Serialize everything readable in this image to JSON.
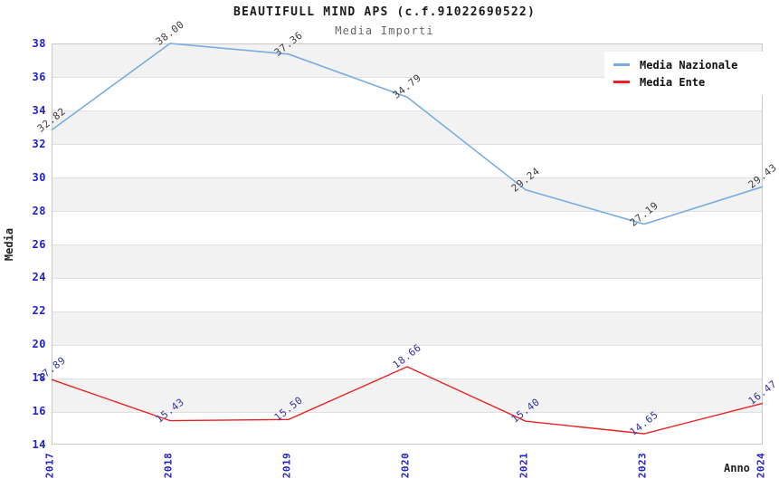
{
  "header": {
    "title": "BEAUTIFULL MIND APS (c.f.91022690522)",
    "subtitle": "Media Importi"
  },
  "chart_data": {
    "type": "line",
    "title": "BEAUTIFULL MIND APS (c.f.91022690522)",
    "subtitle": "Media Importi",
    "xlabel": "Anno",
    "ylabel": "Media",
    "x": [
      "2017",
      "2018",
      "2019",
      "2020",
      "2021",
      "2023",
      "2024"
    ],
    "series": [
      {
        "name": "Media Nazionale",
        "color": "#79ade2",
        "label_color": "#3d3d3d",
        "stroke_width": 1.6,
        "values": [
          32.82,
          38.0,
          37.36,
          34.79,
          29.24,
          27.19,
          29.43
        ]
      },
      {
        "name": "Media Ente",
        "color": "#e82222",
        "label_color": "#333399",
        "stroke_width": 1.4,
        "values": [
          17.89,
          15.43,
          15.5,
          18.66,
          15.4,
          14.65,
          16.47
        ]
      }
    ],
    "ylim": [
      14,
      38
    ],
    "ytick_step": 2,
    "grid": true,
    "band_color": "#f2f2f2",
    "grid_color": "#e0e0e0",
    "tick_color": "#2222cc",
    "legend_position": "top-right"
  }
}
